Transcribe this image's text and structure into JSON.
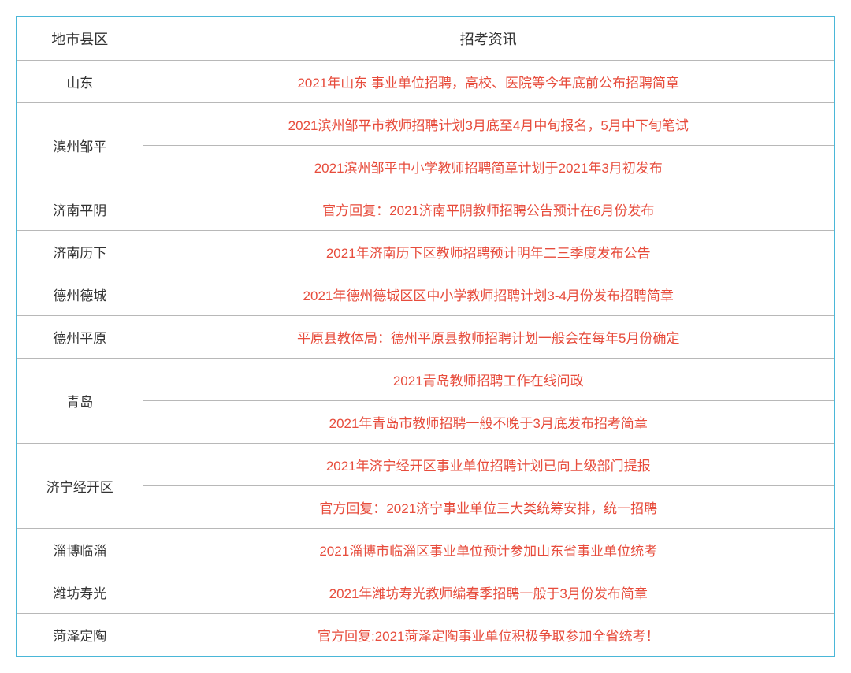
{
  "table": {
    "headers": {
      "region": "地市县区",
      "info": "招考资讯"
    },
    "rows": [
      {
        "region": "山东",
        "rowspan": 1,
        "items": [
          "2021年山东 事业单位招聘，高校、医院等今年底前公布招聘简章"
        ]
      },
      {
        "region": "滨州邹平",
        "rowspan": 2,
        "items": [
          "2021滨州邹平市教师招聘计划3月底至4月中旬报名，5月中下旬笔试",
          "2021滨州邹平中小学教师招聘简章计划于2021年3月初发布"
        ]
      },
      {
        "region": "济南平阴",
        "rowspan": 1,
        "items": [
          "官方回复：2021济南平阴教师招聘公告预计在6月份发布"
        ]
      },
      {
        "region": "济南历下",
        "rowspan": 1,
        "items": [
          "2021年济南历下区教师招聘预计明年二三季度发布公告"
        ]
      },
      {
        "region": "德州德城",
        "rowspan": 1,
        "items": [
          "2021年德州德城区区中小学教师招聘计划3-4月份发布招聘简章"
        ]
      },
      {
        "region": "德州平原",
        "rowspan": 1,
        "items": [
          "平原县教体局：德州平原县教师招聘计划一般会在每年5月份确定"
        ]
      },
      {
        "region": "青岛",
        "rowspan": 2,
        "items": [
          "2021青岛教师招聘工作在线问政",
          "2021年青岛市教师招聘一般不晚于3月底发布招考简章"
        ]
      },
      {
        "region": "济宁经开区",
        "rowspan": 2,
        "items": [
          "2021年济宁经开区事业单位招聘计划已向上级部门提报",
          "官方回复：2021济宁事业单位三大类统筹安排，统一招聘"
        ]
      },
      {
        "region": "淄博临淄",
        "rowspan": 1,
        "items": [
          "2021淄博市临淄区事业单位预计参加山东省事业单位统考"
        ]
      },
      {
        "region": "潍坊寿光",
        "rowspan": 1,
        "items": [
          "2021年潍坊寿光教师编春季招聘一般于3月份发布简章"
        ]
      },
      {
        "region": "菏泽定陶",
        "rowspan": 1,
        "items": [
          "官方回复:2021菏泽定陶事业单位积极争取参加全省统考！"
        ]
      }
    ],
    "styling": {
      "border_color_outer": "#4ab7d8",
      "border_color_inner": "#b8b8b8",
      "header_text_color": "#333333",
      "region_text_color": "#333333",
      "info_text_color": "#e74c3c",
      "background_color": "#ffffff",
      "font_size_header": 18,
      "font_size_cell": 17,
      "cell_padding": 14,
      "region_column_width": 160
    }
  }
}
